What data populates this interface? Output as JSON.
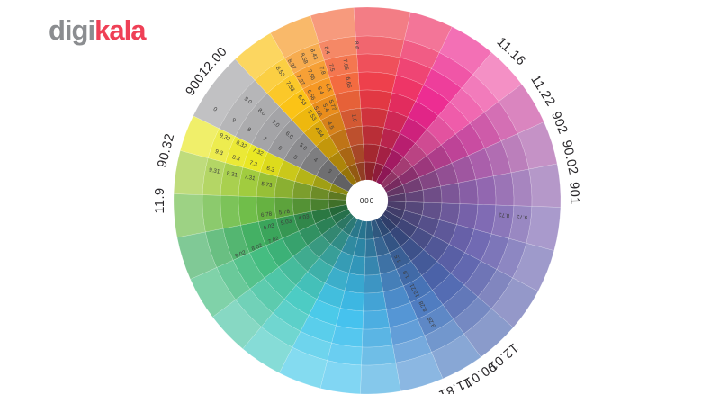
{
  "brand": {
    "digi": "digi",
    "kala": "kala",
    "digi_color": "#8b8d90",
    "kala_color": "#ef4056"
  },
  "wheel": {
    "center_label": "000",
    "outer_label_color": "#29272a",
    "segment_label_color": "#3d3d3d",
    "outer_labels": [
      {
        "text": "11.16",
        "angle": 44
      },
      {
        "text": "11.22",
        "angle": 58
      },
      {
        "text": "902",
        "angle": 68
      },
      {
        "text": "90.02",
        "angle": 78
      },
      {
        "text": "901",
        "angle": 88
      },
      {
        "text": "12.01",
        "angle": 139
      },
      {
        "text": "90.01",
        "angle": 147
      },
      {
        "text": "11.81",
        "angle": 155
      },
      {
        "text": "11.9",
        "angle": 270
      },
      {
        "text": "90.32",
        "angle": 284
      },
      {
        "text": "900",
        "angle": 304
      },
      {
        "text": "12.00",
        "angle": 312
      }
    ],
    "spokes": [
      {
        "name": "red",
        "start": 356,
        "end": 373,
        "color": "#ee3b47"
      },
      {
        "name": "red-pink",
        "start": 13,
        "end": 26,
        "color": "#ee2f63"
      },
      {
        "name": "magenta",
        "start": 26,
        "end": 40,
        "color": "#ed278f"
      },
      {
        "name": "pink",
        "start": 40,
        "end": 53,
        "color": "#ef57a8"
      },
      {
        "name": "magenta-purple",
        "start": 53,
        "end": 66,
        "color": "#c8479f"
      },
      {
        "name": "purple-magenta",
        "start": 66,
        "end": 79,
        "color": "#a85ba9"
      },
      {
        "name": "purple",
        "start": 79,
        "end": 92,
        "color": "#8f63ae"
      },
      {
        "name": "violet",
        "start": 92,
        "end": 105,
        "color": "#7d67b2"
      },
      {
        "name": "violet-blue",
        "start": 105,
        "end": 118,
        "color": "#6d66b1"
      },
      {
        "name": "blue-violet",
        "start": 118,
        "end": 131,
        "color": "#5e64ae"
      },
      {
        "name": "indigo",
        "start": 131,
        "end": 144,
        "color": "#4f68b1"
      },
      {
        "name": "blue",
        "start": 144,
        "end": 157,
        "color": "#4b7ac0"
      },
      {
        "name": "medium-blue",
        "start": 157,
        "end": 170,
        "color": "#5093d4"
      },
      {
        "name": "sky-blue",
        "start": 170,
        "end": 182,
        "color": "#47ace1"
      },
      {
        "name": "cyan",
        "start": 182,
        "end": 194,
        "color": "#41c1ee"
      },
      {
        "name": "light-cyan",
        "start": 194,
        "end": 207,
        "color": "#46c9e9"
      },
      {
        "name": "aqua",
        "start": 207,
        "end": 220,
        "color": "#48cbc3"
      },
      {
        "name": "aqua-green",
        "start": 220,
        "end": 233,
        "color": "#4ac5a5"
      },
      {
        "name": "teal-green",
        "start": 233,
        "end": 246,
        "color": "#40bb7e"
      },
      {
        "name": "green",
        "start": 246,
        "end": 259,
        "color": "#3fae60"
      },
      {
        "name": "green-yellow",
        "start": 259,
        "end": 272,
        "color": "#6cbc45"
      },
      {
        "name": "yellow-green",
        "start": 272,
        "end": 285,
        "color": "#9fcb3a"
      },
      {
        "name": "yellow",
        "start": 285,
        "end": 296,
        "color": "#e9e71e"
      },
      {
        "name": "gray",
        "start": 296,
        "end": 317,
        "color": "#a2a2a5"
      },
      {
        "name": "amber",
        "start": 317,
        "end": 330,
        "color": "#fbc20f"
      },
      {
        "name": "orange",
        "start": 330,
        "end": 343,
        "color": "#f6951e"
      },
      {
        "name": "orange-red",
        "start": 343,
        "end": 356,
        "color": "#f3673b"
      }
    ],
    "segment_labels": [
      {
        "text": "0",
        "angle": 301,
        "ring": 0
      },
      {
        "text": "9",
        "angle": 301,
        "ring": 1
      },
      {
        "text": "8",
        "angle": 301,
        "ring": 2
      },
      {
        "text": "7",
        "angle": 301,
        "ring": 3
      },
      {
        "text": "6",
        "angle": 301,
        "ring": 4
      },
      {
        "text": "5",
        "angle": 301,
        "ring": 5
      },
      {
        "text": "9.0",
        "angle": 310,
        "ring": 1
      },
      {
        "text": "8.0",
        "angle": 310,
        "ring": 2
      },
      {
        "text": "7.0",
        "angle": 310,
        "ring": 3
      },
      {
        "text": "6.0",
        "angle": 310,
        "ring": 4
      },
      {
        "text": "5.0",
        "angle": 310,
        "ring": 5
      },
      {
        "text": "4",
        "angle": 308,
        "ring": 6
      },
      {
        "text": "3",
        "angle": 308,
        "ring": 7
      },
      {
        "text": "9.32",
        "angle": 294,
        "ring": 1
      },
      {
        "text": "8.32",
        "angle": 294,
        "ring": 2
      },
      {
        "text": "7.32",
        "angle": 294,
        "ring": 3
      },
      {
        "text": "9.3",
        "angle": 288,
        "ring": 1
      },
      {
        "text": "8.3",
        "angle": 288,
        "ring": 2
      },
      {
        "text": "7.3",
        "angle": 288,
        "ring": 3
      },
      {
        "text": "6.3",
        "angle": 288,
        "ring": 4
      },
      {
        "text": "9.31",
        "angle": 281,
        "ring": 1
      },
      {
        "text": "8.31",
        "angle": 281,
        "ring": 2
      },
      {
        "text": "7.31",
        "angle": 281,
        "ring": 3
      },
      {
        "text": "5.73",
        "angle": 279,
        "ring": 4
      },
      {
        "text": "6.78",
        "angle": 262,
        "ring": 4
      },
      {
        "text": "5.78",
        "angle": 262,
        "ring": 5
      },
      {
        "text": "6.03",
        "angle": 255,
        "ring": 4
      },
      {
        "text": "5.03",
        "angle": 255,
        "ring": 5
      },
      {
        "text": "4.03",
        "angle": 255,
        "ring": 6
      },
      {
        "text": "9.02",
        "angle": 247,
        "ring": 2
      },
      {
        "text": "8.02",
        "angle": 247,
        "ring": 3
      },
      {
        "text": "7.02",
        "angle": 247,
        "ring": 4
      },
      {
        "text": "8.53",
        "angle": 326,
        "ring": 1
      },
      {
        "text": "7.53",
        "angle": 326,
        "ring": 2
      },
      {
        "text": "6.53",
        "angle": 327,
        "ring": 3
      },
      {
        "text": "5.53",
        "angle": 327,
        "ring": 4
      },
      {
        "text": "4.54",
        "angle": 325,
        "ring": 5
      },
      {
        "text": "8.37",
        "angle": 331,
        "ring": 1
      },
      {
        "text": "7.37",
        "angle": 331,
        "ring": 2
      },
      {
        "text": "6.56",
        "angle": 332,
        "ring": 3
      },
      {
        "text": "5.65",
        "angle": 331,
        "ring": 4
      },
      {
        "text": "8.58",
        "angle": 336,
        "ring": 1
      },
      {
        "text": "7.56",
        "angle": 336,
        "ring": 2
      },
      {
        "text": "6.4",
        "angle": 337,
        "ring": 3
      },
      {
        "text": "5.4",
        "angle": 336,
        "ring": 4
      },
      {
        "text": "4.5",
        "angle": 334,
        "ring": 5
      },
      {
        "text": "8.43",
        "angle": 340,
        "ring": 1
      },
      {
        "text": "7.8",
        "angle": 341,
        "ring": 2
      },
      {
        "text": "6.5",
        "angle": 341,
        "ring": 3
      },
      {
        "text": "5.77",
        "angle": 340,
        "ring": 4
      },
      {
        "text": "8.4",
        "angle": 345,
        "ring": 1
      },
      {
        "text": "7.5",
        "angle": 345,
        "ring": 2
      },
      {
        "text": "8.6",
        "angle": 356,
        "ring": 1
      },
      {
        "text": "7.66",
        "angle": 351,
        "ring": 2
      },
      {
        "text": "6.66",
        "angle": 351,
        "ring": 3
      },
      {
        "text": "1.6",
        "angle": 351,
        "ring": 5
      },
      {
        "text": "9.73",
        "angle": 96,
        "ring": 1
      },
      {
        "text": "8.73",
        "angle": 96,
        "ring": 2
      },
      {
        "text": "9.28",
        "angle": 152,
        "ring": 2
      },
      {
        "text": "8.28",
        "angle": 152,
        "ring": 3
      },
      {
        "text": "12.21",
        "angle": 152,
        "ring": 4
      },
      {
        "text": "1.9",
        "angle": 152,
        "ring": 5
      },
      {
        "text": "1.5",
        "angle": 152,
        "ring": 6
      }
    ]
  }
}
